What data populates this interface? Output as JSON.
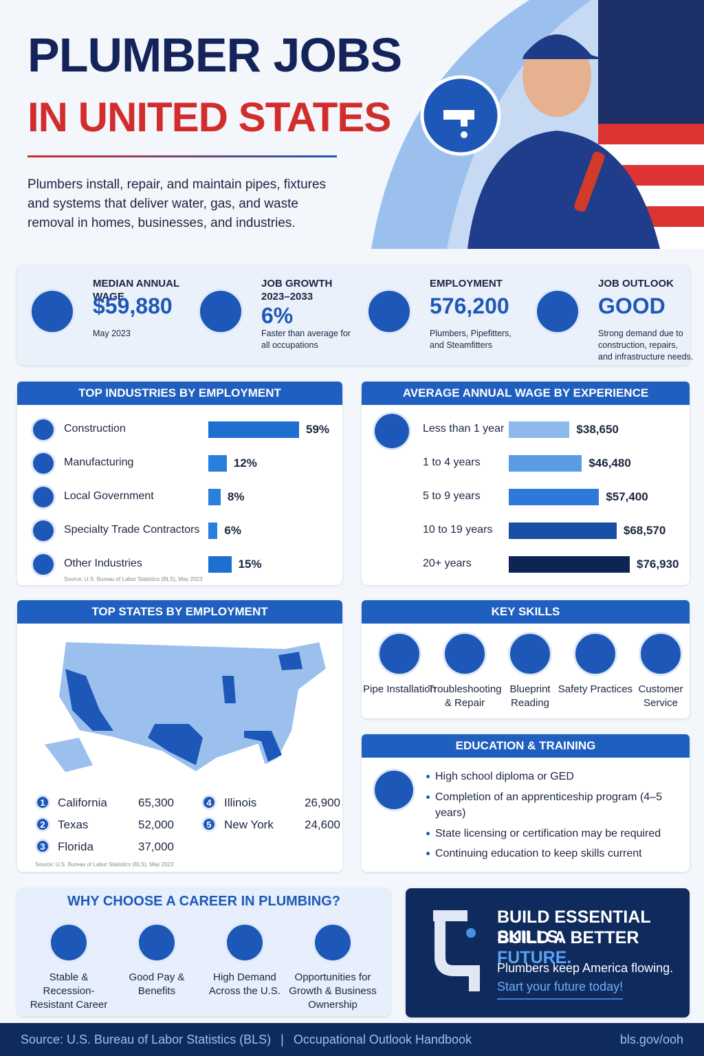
{
  "header": {
    "title_line1": "PLUMBER JOBS",
    "title_line2": "IN UNITED STATES",
    "description": "Plumbers install, repair, and maintain pipes, fixtures and systems that deliver water, gas, and waste removal in homes, businesses, and industries."
  },
  "stats": [
    {
      "label": "MEDIAN ANNUAL WAGE",
      "value": "$59,880",
      "note": "May 2023"
    },
    {
      "label": "JOB GROWTH 2023–2033",
      "value": "6%",
      "note": "Faster than average for all occupations"
    },
    {
      "label": "EMPLOYMENT",
      "value": "576,200",
      "note": "Plumbers, Pipefitters, and Steamfitters"
    },
    {
      "label": "JOB OUTLOOK",
      "value": "GOOD",
      "note": "Strong demand due to construction, repairs, and infrastructure needs."
    }
  ],
  "industries": {
    "title": "TOP INDUSTRIES BY EMPLOYMENT",
    "categories": [
      "Construction",
      "Manufacturing",
      "Local Government",
      "Specialty Trade Contractors",
      "Other Industries"
    ],
    "values": [
      59,
      12,
      8,
      6,
      15
    ],
    "value_labels": [
      "59%",
      "12%",
      "8%",
      "6%",
      "15%"
    ],
    "source": "Source: U.S. Bureau of Labor Statistics (BLS), May 2023"
  },
  "wages": {
    "title": "AVERAGE ANNUAL WAGE BY EXPERIENCE",
    "categories": [
      "Less than 1 year",
      "1 to 4 years",
      "5 to 9 years",
      "10 to 19 years",
      "20+ years"
    ],
    "values": [
      38650,
      46480,
      57400,
      68570,
      76930
    ],
    "value_labels": [
      "$38,650",
      "$46,480",
      "$57,400",
      "$68,570",
      "$76,930"
    ]
  },
  "states": {
    "title": "TOP STATES BY EMPLOYMENT",
    "rows": [
      {
        "rank": "1",
        "state": "California",
        "employment": "65,300"
      },
      {
        "rank": "2",
        "state": "Texas",
        "employment": "52,000"
      },
      {
        "rank": "3",
        "state": "Florida",
        "employment": "37,000"
      },
      {
        "rank": "4",
        "state": "Illinois",
        "employment": "26,900"
      },
      {
        "rank": "5",
        "state": "New York",
        "employment": "24,600"
      }
    ],
    "source": "Source: U.S. Bureau of Labor Statistics (BLS), May 2023"
  },
  "skills": {
    "title": "KEY SKILLS",
    "items": [
      "Pipe Installation",
      "Troubleshooting & Repair",
      "Blueprint Reading",
      "Safety Practices",
      "Customer Service"
    ]
  },
  "education": {
    "title": "EDUCATION & TRAINING",
    "items": [
      "High school diploma or GED",
      "Completion of an apprenticeship program (4–5 years)",
      "State licensing or certification may be required",
      "Continuing education to keep skills current"
    ]
  },
  "why": {
    "title": "WHY CHOOSE A CAREER IN PLUMBING?",
    "items": [
      "Stable & Recession-Resistant Career",
      "Good Pay & Benefits",
      "High Demand Across the U.S.",
      "Opportunities for Growth & Business Ownership"
    ]
  },
  "cta": {
    "line1": "BUILD ESSENTIAL SKILLS.",
    "line2": "BUILD A BETTER",
    "line2_accent": "FUTURE.",
    "text": "Plumbers keep America flowing.",
    "link": "Start your future today!"
  },
  "footer": {
    "source": "Source: U.S. Bureau of Labor Statistics (BLS)",
    "separator": "|",
    "handbook": "Occupational Outlook Handbook",
    "link": "bls.gov/ooh"
  }
}
